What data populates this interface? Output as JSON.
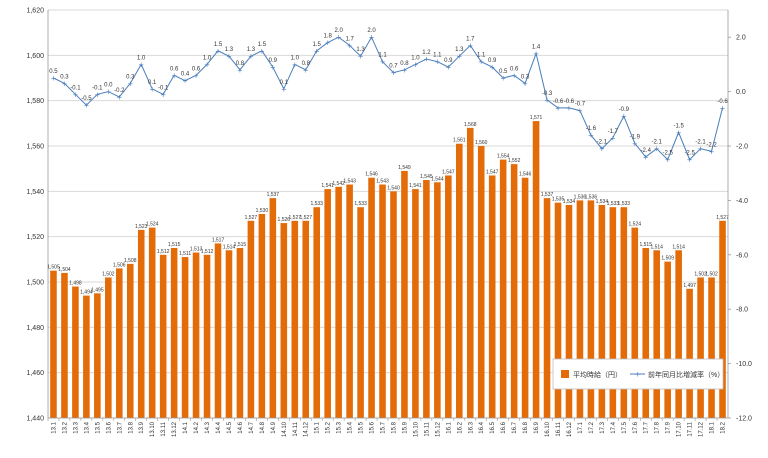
{
  "chart_data": {
    "type": "bar+line",
    "title": "",
    "categories": [
      "13.1",
      "13.2",
      "13.3",
      "13.4",
      "13.5",
      "13.6",
      "13.7",
      "13.8",
      "13.9",
      "13.10",
      "13.11",
      "13.12",
      "14.1",
      "14.2",
      "14.3",
      "14.4",
      "14.5",
      "14.6",
      "14.7",
      "14.8",
      "14.9",
      "14.10",
      "14.11",
      "14.12",
      "15.1",
      "15.2",
      "15.3",
      "15.4",
      "15.5",
      "15.6",
      "15.7",
      "15.8",
      "15.9",
      "15.10",
      "15.11",
      "15.12",
      "16.1",
      "16.2",
      "16.3",
      "16.4",
      "16.5",
      "16.6",
      "16.7",
      "16.8",
      "16.9",
      "16.10",
      "16.11",
      "16.12",
      "17.1",
      "17.2",
      "17.3",
      "17.4",
      "17.5",
      "17.6",
      "17.7",
      "17.8",
      "17.9",
      "17.10",
      "17.11",
      "17.12",
      "18.1",
      "18.2"
    ],
    "series": [
      {
        "name": "平均時給（円）",
        "type": "bar",
        "axis": "left",
        "color": "#e36c09",
        "values": [
          1505,
          1504,
          1498,
          1494,
          1495,
          1502,
          1506,
          1508,
          1523,
          1524,
          1512,
          1515,
          1511,
          1513,
          1512,
          1517,
          1514,
          1515,
          1527,
          1530,
          1537,
          1526,
          1527,
          1527,
          1533,
          1541,
          1542,
          1543,
          1533,
          1546,
          1543,
          1540,
          1549,
          1541,
          1545,
          1544,
          1547,
          1561,
          1568,
          1560,
          1547,
          1554,
          1552,
          1546,
          1571,
          1537,
          1535,
          1534,
          1536,
          1536,
          1534,
          1533,
          1533,
          1524,
          1515,
          1514,
          1509,
          1514,
          1497,
          1502,
          1502,
          1527
        ],
        "labels": [
          "1,505",
          "1,504",
          "1,498",
          "1,494",
          "1,495",
          "1,502",
          "1,506",
          "1,508",
          "1,523",
          "1,524",
          "1,512",
          "1,515",
          "1,511",
          "1,513",
          "1,512",
          "1,517",
          "1,514",
          "1,515",
          "1,527",
          "1,530",
          "1,537",
          "1,526",
          "1,527",
          "1,527",
          "1,533",
          "1,541",
          "1,542",
          "1,543",
          "1,533",
          "1,546",
          "1,543",
          "1,540",
          "1,549",
          "1,541",
          "1,545",
          "1,544",
          "1,547",
          "1,561",
          "1,568",
          "1,560",
          "1,547",
          "1,554",
          "1,552",
          "1,546",
          "1,571",
          "1,537",
          "1,535",
          "1,534",
          "1,536",
          "1,536",
          "1,534",
          "1,533",
          "1,533",
          "1,524",
          "1,515",
          "1,514",
          "1,509",
          "1,514",
          "1,497",
          "1,502",
          "1,502",
          "1,527"
        ]
      },
      {
        "name": "前年同月比増減率（%）",
        "type": "line",
        "axis": "right",
        "color": "#4a7ebb",
        "values": [
          0.5,
          0.3,
          -0.1,
          -0.5,
          -0.1,
          0.0,
          -0.2,
          0.3,
          1.0,
          0.1,
          -0.1,
          0.6,
          0.4,
          0.6,
          1.0,
          1.5,
          1.3,
          0.8,
          1.3,
          1.5,
          0.9,
          0.1,
          1.0,
          0.8,
          1.5,
          1.8,
          2.0,
          1.7,
          1.3,
          2.0,
          1.1,
          0.7,
          0.8,
          1.0,
          1.2,
          1.1,
          0.9,
          1.3,
          1.7,
          1.1,
          0.9,
          0.5,
          0.6,
          0.3,
          1.4,
          -0.3,
          -0.6,
          -0.6,
          -0.7,
          -1.6,
          -2.1,
          -1.7,
          -0.9,
          -1.9,
          -2.4,
          -2.1,
          -2.5,
          -1.5,
          -2.5,
          -2.1,
          -2.2,
          -0.6
        ],
        "labels": [
          "0.5",
          "0.3",
          "-0.1",
          "-0.5",
          "-0.1",
          "0.0",
          "-0.2",
          "0.3",
          "1.0",
          "0.1",
          "-0.1",
          "0.6",
          "0.4",
          "0.6",
          "1.0",
          "1.5",
          "1.3",
          "0.8",
          "1.3",
          "1.5",
          "0.9",
          "0.1",
          "1.0",
          "0.8",
          "1.5",
          "1.8",
          "2.0",
          "1.7",
          "1.3",
          "2.0",
          "1.1",
          "0.7",
          "0.8",
          "1.0",
          "1.2",
          "1.1",
          "0.9",
          "1.3",
          "1.7",
          "1.1",
          "0.9",
          "0.5",
          "0.6",
          "0.3",
          "1.4",
          "-0.3",
          "-0.6",
          "-0.6",
          "-0.7",
          "-1.6",
          "-2.1",
          "-1.7",
          "-0.9",
          "-1.9",
          "-2.4",
          "-2.1",
          "-2.5",
          "-1.5",
          "-2.5",
          "-2.1",
          "-2.2",
          "-0.6"
        ]
      }
    ],
    "y_left": {
      "range": [
        1440,
        1620
      ],
      "ticks": [
        1440,
        1460,
        1480,
        1500,
        1520,
        1540,
        1560,
        1580,
        1600,
        1620
      ],
      "tick_labels": [
        "1,440",
        "1,460",
        "1,480",
        "1,500",
        "1,520",
        "1,540",
        "1,560",
        "1,580",
        "1,600",
        "1,620"
      ]
    },
    "y_right": {
      "range": [
        -12.0,
        3.0
      ],
      "ticks": [
        2,
        0,
        -2,
        -4,
        -6,
        -8,
        -10,
        -12
      ],
      "tick_labels": [
        "2.0",
        "0.0",
        "-2.0",
        "-4.0",
        "-6.0",
        "-8.0",
        "-10.0",
        "-12.0"
      ]
    },
    "grid": true,
    "legend": {
      "placement": "bottom-right",
      "items": [
        "平均時給（円）",
        "前年同月比増減率（%）"
      ]
    }
  }
}
